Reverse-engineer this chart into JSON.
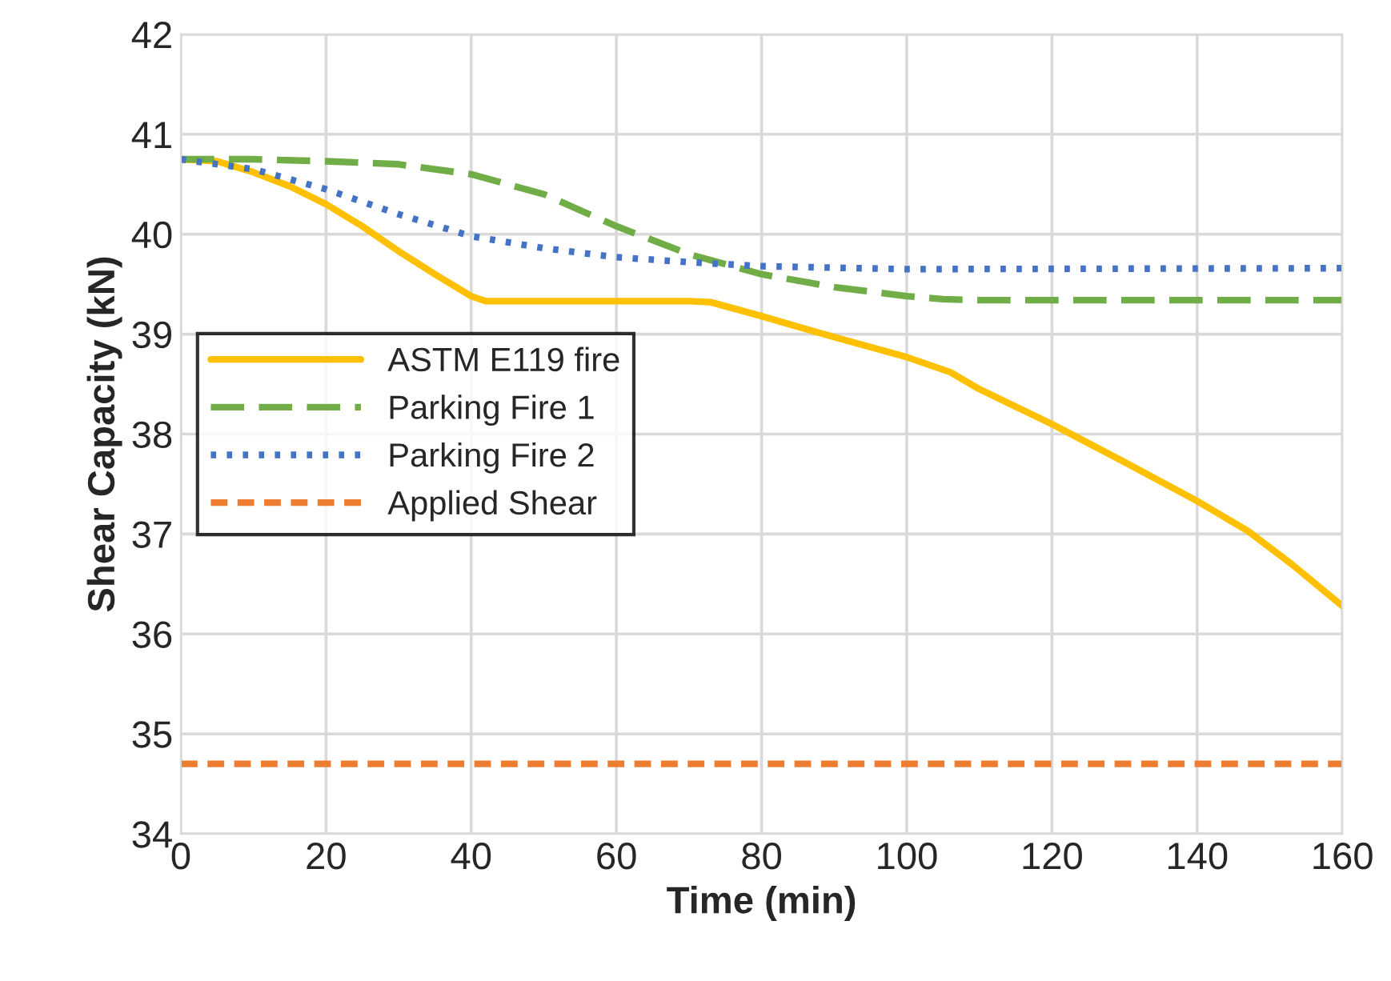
{
  "chart_data": {
    "type": "line",
    "xlabel": "Time (min)",
    "ylabel": "Shear Capacity (kN)",
    "xlim": [
      0,
      160
    ],
    "xticks": [
      0,
      20,
      40,
      60,
      80,
      100,
      120,
      140,
      160
    ],
    "ylim": [
      34,
      42
    ],
    "yticks": [
      34,
      35,
      36,
      37,
      38,
      39,
      40,
      41,
      42
    ],
    "grid": true,
    "legend": "center left",
    "marker": "none",
    "series": [
      {
        "name": "ASTM E119 fire",
        "color": "#ffc000",
        "line_style": "solid",
        "x": [
          0,
          5,
          10,
          15,
          20,
          25,
          30,
          35,
          40,
          42,
          50,
          60,
          70,
          73,
          80,
          90,
          100,
          106,
          110,
          120,
          130,
          140,
          147,
          153,
          160
        ],
        "values": [
          40.75,
          40.73,
          40.62,
          40.48,
          40.3,
          40.08,
          39.83,
          39.6,
          39.38,
          39.33,
          39.33,
          39.33,
          39.33,
          39.32,
          39.18,
          38.97,
          38.77,
          38.62,
          38.45,
          38.1,
          37.72,
          37.33,
          37.03,
          36.7,
          36.28
        ]
      },
      {
        "name": "Parking Fire 1",
        "color": "#70ad47",
        "line_style": "dashed",
        "x": [
          0,
          10,
          20,
          30,
          40,
          50,
          60,
          70,
          80,
          90,
          100,
          105,
          110,
          160
        ],
        "values": [
          40.75,
          40.75,
          40.73,
          40.7,
          40.6,
          40.4,
          40.08,
          39.8,
          39.6,
          39.47,
          39.38,
          39.35,
          39.34,
          39.34
        ]
      },
      {
        "name": "Parking Fire 2",
        "color": "#4472c4",
        "line_style": "dotted",
        "x": [
          0,
          10,
          20,
          30,
          40,
          50,
          60,
          70,
          80,
          100,
          160
        ],
        "values": [
          40.75,
          40.65,
          40.45,
          40.2,
          39.98,
          39.86,
          39.77,
          39.72,
          39.68,
          39.65,
          39.66
        ]
      },
      {
        "name": "Applied Shear",
        "color": "#ed7d31",
        "line_style": "short_dashed",
        "x": [
          0,
          160
        ],
        "values": [
          34.7,
          34.7
        ]
      }
    ]
  }
}
